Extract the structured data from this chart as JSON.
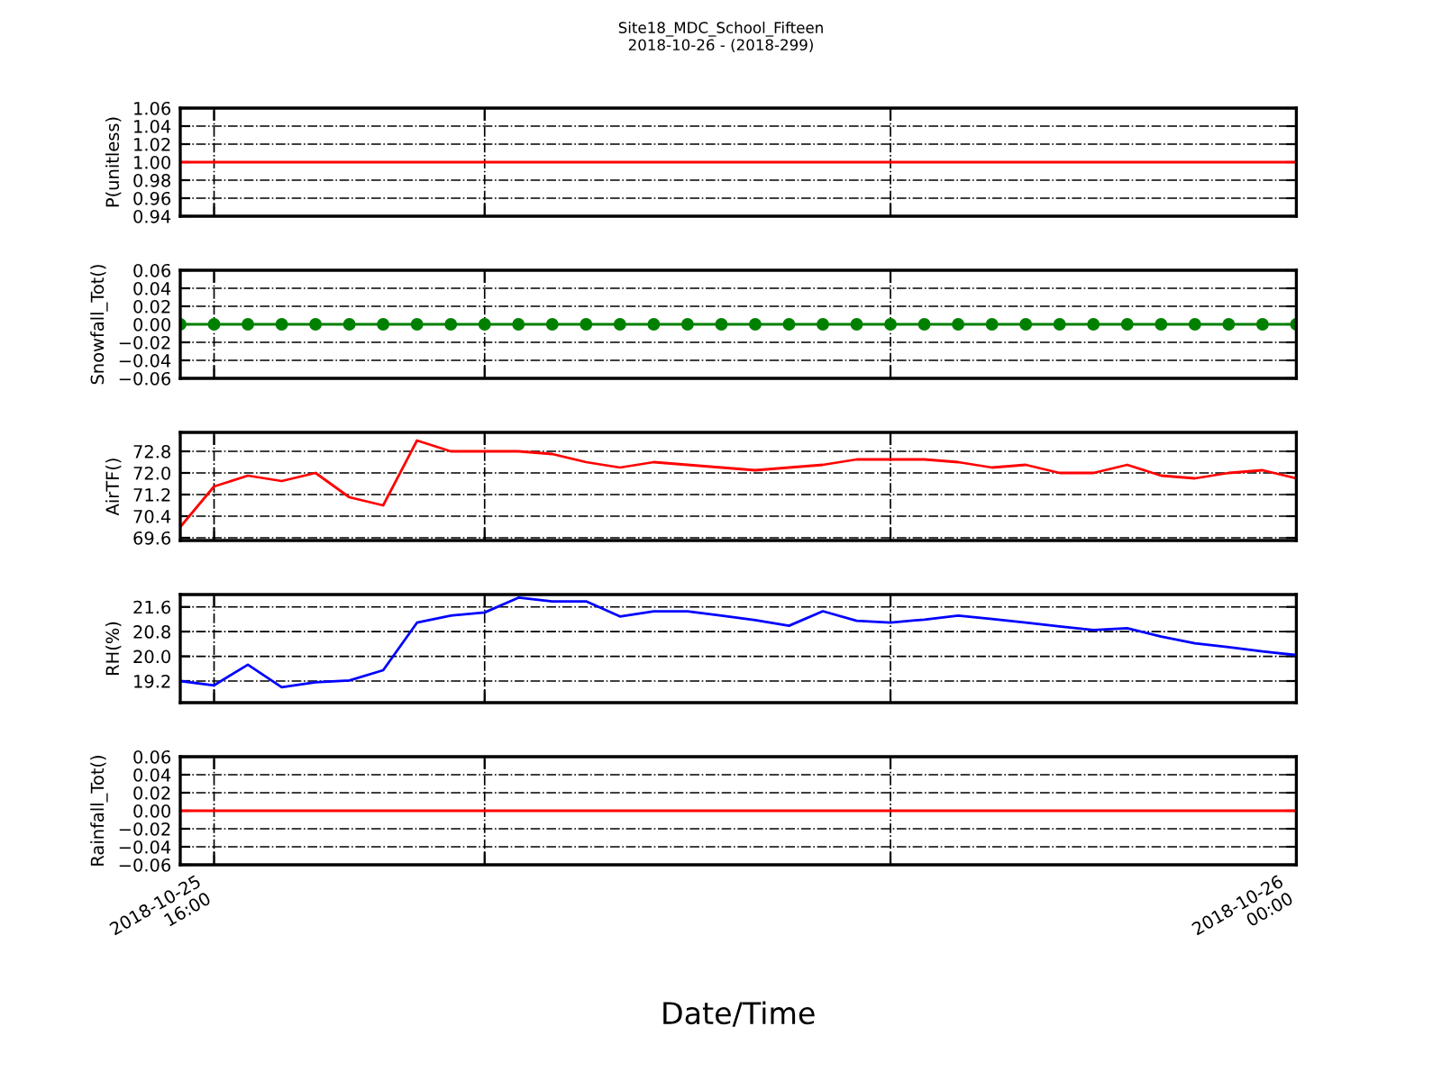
{
  "chart_data": [
    {
      "type": "line",
      "title": "Site18_MDC_School_Fifteen\n2018-10-26 - (2018-299)",
      "ylabel": "P(unitless)",
      "x": [
        "2018-10-25T15:45",
        "2018-10-25T16:00",
        "2018-10-25T16:15",
        "2018-10-25T16:30",
        "2018-10-25T16:45",
        "2018-10-25T17:00",
        "2018-10-25T17:15",
        "2018-10-25T17:30",
        "2018-10-25T17:45",
        "2018-10-25T18:00",
        "2018-10-25T18:15",
        "2018-10-25T18:30",
        "2018-10-25T18:45",
        "2018-10-25T19:00",
        "2018-10-25T19:15",
        "2018-10-25T19:30",
        "2018-10-25T19:45",
        "2018-10-25T20:00",
        "2018-10-25T20:15",
        "2018-10-25T20:30",
        "2018-10-25T20:45",
        "2018-10-25T21:00",
        "2018-10-25T21:15",
        "2018-10-25T21:30",
        "2018-10-25T21:45",
        "2018-10-25T22:00",
        "2018-10-25T22:15",
        "2018-10-25T22:30",
        "2018-10-25T22:45",
        "2018-10-25T23:00",
        "2018-10-25T23:15",
        "2018-10-25T23:30",
        "2018-10-25T23:45",
        "2018-10-26T00:00"
      ],
      "series": [
        {
          "color": "#ff0000",
          "values": [
            1,
            1,
            1,
            1,
            1,
            1,
            1,
            1,
            1,
            1,
            1,
            1,
            1,
            1,
            1,
            1,
            1,
            1,
            1,
            1,
            1,
            1,
            1,
            1,
            1,
            1,
            1,
            1,
            1,
            1,
            1,
            1,
            1,
            1
          ]
        }
      ],
      "xlim": [
        "2018-10-25T15:45",
        "2018-10-26T00:00"
      ],
      "xticks": [
        {
          "value": "2018-10-25T16:00",
          "label": null
        },
        {
          "value": "2018-10-25T18:00",
          "label": null
        },
        {
          "value": "2018-10-25T21:00",
          "label": null
        },
        {
          "value": "2018-10-26T00:00",
          "label": null
        }
      ],
      "ylim": [
        0.94,
        1.06
      ],
      "yticks": [
        {
          "value": 0.94,
          "label": "0.94"
        },
        {
          "value": 0.96,
          "label": "0.96"
        },
        {
          "value": 0.98,
          "label": "0.98"
        },
        {
          "value": 1.0,
          "label": "1.00"
        },
        {
          "value": 1.02,
          "label": "1.02"
        },
        {
          "value": 1.04,
          "label": "1.04"
        },
        {
          "value": 1.06,
          "label": "1.06"
        }
      ],
      "grid": true,
      "tick_labels": "y",
      "marker": "none",
      "line_style": "solid"
    },
    {
      "type": "line",
      "ylabel": "Snowfall_Tot()",
      "x": [
        "2018-10-25T15:45",
        "2018-10-25T16:00",
        "2018-10-25T16:15",
        "2018-10-25T16:30",
        "2018-10-25T16:45",
        "2018-10-25T17:00",
        "2018-10-25T17:15",
        "2018-10-25T17:30",
        "2018-10-25T17:45",
        "2018-10-25T18:00",
        "2018-10-25T18:15",
        "2018-10-25T18:30",
        "2018-10-25T18:45",
        "2018-10-25T19:00",
        "2018-10-25T19:15",
        "2018-10-25T19:30",
        "2018-10-25T19:45",
        "2018-10-25T20:00",
        "2018-10-25T20:15",
        "2018-10-25T20:30",
        "2018-10-25T20:45",
        "2018-10-25T21:00",
        "2018-10-25T21:15",
        "2018-10-25T21:30",
        "2018-10-25T21:45",
        "2018-10-25T22:00",
        "2018-10-25T22:15",
        "2018-10-25T22:30",
        "2018-10-25T22:45",
        "2018-10-25T23:00",
        "2018-10-25T23:15",
        "2018-10-25T23:30",
        "2018-10-25T23:45",
        "2018-10-26T00:00"
      ],
      "series": [
        {
          "color": "#008000",
          "values": [
            0,
            0,
            0,
            0,
            0,
            0,
            0,
            0,
            0,
            0,
            0,
            0,
            0,
            0,
            0,
            0,
            0,
            0,
            0,
            0,
            0,
            0,
            0,
            0,
            0,
            0,
            0,
            0,
            0,
            0,
            0,
            0,
            0,
            0
          ]
        }
      ],
      "xlim": [
        "2018-10-25T15:45",
        "2018-10-26T00:00"
      ],
      "xticks": [
        {
          "value": "2018-10-25T16:00",
          "label": null
        },
        {
          "value": "2018-10-25T18:00",
          "label": null
        },
        {
          "value": "2018-10-25T21:00",
          "label": null
        },
        {
          "value": "2018-10-26T00:00",
          "label": null
        }
      ],
      "ylim": [
        -0.06,
        0.06
      ],
      "yticks": [
        {
          "value": -0.06,
          "label": "−0.06"
        },
        {
          "value": -0.04,
          "label": "−0.04"
        },
        {
          "value": -0.02,
          "label": "−0.02"
        },
        {
          "value": 0,
          "label": "0.00"
        },
        {
          "value": 0.02,
          "label": "0.02"
        },
        {
          "value": 0.04,
          "label": "0.04"
        },
        {
          "value": 0.06,
          "label": "0.06"
        }
      ],
      "grid": true,
      "tick_labels": "y",
      "marker": "circle",
      "line_style": "solid"
    },
    {
      "type": "line",
      "ylabel": "AirTF()",
      "x": [
        "2018-10-25T15:45",
        "2018-10-25T16:00",
        "2018-10-25T16:15",
        "2018-10-25T16:30",
        "2018-10-25T16:45",
        "2018-10-25T17:00",
        "2018-10-25T17:15",
        "2018-10-25T17:30",
        "2018-10-25T17:45",
        "2018-10-25T18:00",
        "2018-10-25T18:15",
        "2018-10-25T18:30",
        "2018-10-25T18:45",
        "2018-10-25T19:00",
        "2018-10-25T19:15",
        "2018-10-25T19:30",
        "2018-10-25T19:45",
        "2018-10-25T20:00",
        "2018-10-25T20:15",
        "2018-10-25T20:30",
        "2018-10-25T20:45",
        "2018-10-25T21:00",
        "2018-10-25T21:15",
        "2018-10-25T21:30",
        "2018-10-25T21:45",
        "2018-10-25T22:00",
        "2018-10-25T22:15",
        "2018-10-25T22:30",
        "2018-10-25T22:45",
        "2018-10-25T23:00",
        "2018-10-25T23:15",
        "2018-10-25T23:30",
        "2018-10-25T23:45",
        "2018-10-26T00:00"
      ],
      "series": [
        {
          "color": "#ff0000",
          "values": [
            70.0,
            71.5,
            71.9,
            71.7,
            72.0,
            71.1,
            70.8,
            73.2,
            72.8,
            72.8,
            72.8,
            72.7,
            72.4,
            72.2,
            72.4,
            72.3,
            72.2,
            72.1,
            72.2,
            72.3,
            72.5,
            72.5,
            72.5,
            72.4,
            72.2,
            72.3,
            72.0,
            72.0,
            72.3,
            71.9,
            71.8,
            72.0,
            72.1,
            71.8
          ]
        }
      ],
      "xlim": [
        "2018-10-25T15:45",
        "2018-10-26T00:00"
      ],
      "xticks": [
        {
          "value": "2018-10-25T16:00",
          "label": null
        },
        {
          "value": "2018-10-25T18:00",
          "label": null
        },
        {
          "value": "2018-10-25T21:00",
          "label": null
        },
        {
          "value": "2018-10-26T00:00",
          "label": null
        }
      ],
      "ylim": [
        69.5,
        73.5
      ],
      "yticks": [
        69.6,
        70.4,
        71.2,
        {
          "value": 72.0,
          "label": "72.0"
        },
        72.8
      ],
      "grid": true,
      "tick_labels": "y",
      "marker": "none",
      "line_style": "solid"
    },
    {
      "type": "line",
      "ylabel": "RH(%)",
      "x": [
        "2018-10-25T15:45",
        "2018-10-25T16:00",
        "2018-10-25T16:15",
        "2018-10-25T16:30",
        "2018-10-25T16:45",
        "2018-10-25T17:00",
        "2018-10-25T17:15",
        "2018-10-25T17:30",
        "2018-10-25T17:45",
        "2018-10-25T18:00",
        "2018-10-25T18:15",
        "2018-10-25T18:30",
        "2018-10-25T18:45",
        "2018-10-25T19:00",
        "2018-10-25T19:15",
        "2018-10-25T19:30",
        "2018-10-25T19:45",
        "2018-10-25T20:00",
        "2018-10-25T20:15",
        "2018-10-25T20:30",
        "2018-10-25T20:45",
        "2018-10-25T21:00",
        "2018-10-25T21:15",
        "2018-10-25T21:30",
        "2018-10-25T21:45",
        "2018-10-25T22:00",
        "2018-10-25T22:15",
        "2018-10-25T22:30",
        "2018-10-25T22:45",
        "2018-10-25T23:00",
        "2018-10-25T23:15",
        "2018-10-25T23:30",
        "2018-10-25T23:45",
        "2018-10-26T00:00"
      ],
      "series": [
        {
          "color": "#0000ff",
          "values": [
            19.2,
            19.06,
            19.73,
            19.0,
            19.16,
            19.22,
            19.55,
            21.09,
            21.32,
            21.42,
            21.9,
            21.78,
            21.78,
            21.29,
            21.46,
            21.46,
            21.32,
            21.17,
            20.99,
            21.46,
            21.15,
            21.09,
            21.19,
            21.32,
            21.21,
            21.09,
            20.97,
            20.85,
            20.91,
            20.64,
            20.42,
            20.3,
            20.16,
            20.04
          ]
        }
      ],
      "xlim": [
        "2018-10-25T15:45",
        "2018-10-26T00:00"
      ],
      "xticks": [
        {
          "value": "2018-10-25T16:00",
          "label": null
        },
        {
          "value": "2018-10-25T18:00",
          "label": null
        },
        {
          "value": "2018-10-25T21:00",
          "label": null
        },
        {
          "value": "2018-10-26T00:00",
          "label": null
        }
      ],
      "ylim": [
        18.5,
        22.0
      ],
      "yticks": [
        19.2,
        {
          "value": 20.0,
          "label": "20.0"
        },
        20.8,
        21.6
      ],
      "grid": true,
      "tick_labels": "y",
      "marker": "none",
      "line_style": "solid"
    },
    {
      "type": "line",
      "ylabel": "Rainfall_Tot()",
      "xlabel": "Date/Time",
      "x": [
        "2018-10-25T15:45",
        "2018-10-25T16:00",
        "2018-10-25T16:15",
        "2018-10-25T16:30",
        "2018-10-25T16:45",
        "2018-10-25T17:00",
        "2018-10-25T17:15",
        "2018-10-25T17:30",
        "2018-10-25T17:45",
        "2018-10-25T18:00",
        "2018-10-25T18:15",
        "2018-10-25T18:30",
        "2018-10-25T18:45",
        "2018-10-25T19:00",
        "2018-10-25T19:15",
        "2018-10-25T19:30",
        "2018-10-25T19:45",
        "2018-10-25T20:00",
        "2018-10-25T20:15",
        "2018-10-25T20:30",
        "2018-10-25T20:45",
        "2018-10-25T21:00",
        "2018-10-25T21:15",
        "2018-10-25T21:30",
        "2018-10-25T21:45",
        "2018-10-25T22:00",
        "2018-10-25T22:15",
        "2018-10-25T22:30",
        "2018-10-25T22:45",
        "2018-10-25T23:00",
        "2018-10-25T23:15",
        "2018-10-25T23:30",
        "2018-10-25T23:45",
        "2018-10-26T00:00"
      ],
      "series": [
        {
          "color": "#ff0000",
          "values": [
            0,
            0,
            0,
            0,
            0,
            0,
            0,
            0,
            0,
            0,
            0,
            0,
            0,
            0,
            0,
            0,
            0,
            0,
            0,
            0,
            0,
            0,
            0,
            0,
            0,
            0,
            0,
            0,
            0,
            0,
            0,
            0,
            0,
            0
          ]
        }
      ],
      "xlim": [
        "2018-10-25T15:45",
        "2018-10-26T00:00"
      ],
      "xticks": [
        {
          "value": "2018-10-25T16:00",
          "label": "2018-10-25\n16:00"
        },
        {
          "value": "2018-10-25T18:00",
          "label": null
        },
        {
          "value": "2018-10-25T21:00",
          "label": null
        },
        {
          "value": "2018-10-26T00:00",
          "label": "2018-10-26\n00:00"
        }
      ],
      "ylim": [
        -0.06,
        0.06
      ],
      "yticks": [
        {
          "value": -0.06,
          "label": "−0.06"
        },
        {
          "value": -0.04,
          "label": "−0.04"
        },
        {
          "value": -0.02,
          "label": "−0.02"
        },
        {
          "value": 0,
          "label": "0.00"
        },
        {
          "value": 0.02,
          "label": "0.02"
        },
        {
          "value": 0.04,
          "label": "0.04"
        },
        {
          "value": 0.06,
          "label": "0.06"
        }
      ],
      "grid": true,
      "marker": "none",
      "line_style": "solid"
    }
  ]
}
